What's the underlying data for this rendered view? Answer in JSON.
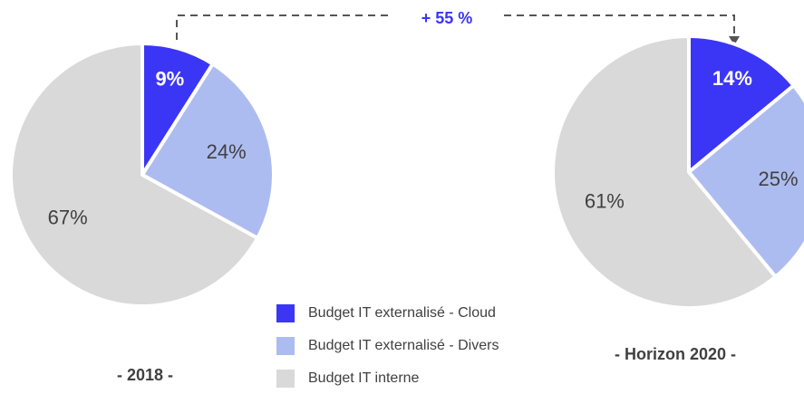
{
  "chart_data": [
    {
      "type": "pie",
      "title": "- 2018 -",
      "values": [
        9,
        24,
        67
      ],
      "value_labels": [
        "9%",
        "24%",
        "67%"
      ]
    },
    {
      "type": "pie",
      "title": "- Horizon 2020 -",
      "values": [
        14,
        25,
        61
      ],
      "value_labels": [
        "14%",
        "25%",
        "61%"
      ]
    }
  ],
  "legend": {
    "categories": [
      "Budget IT externalisé - Cloud",
      "Budget IT externalisé - Divers",
      "Budget IT interne"
    ],
    "colors": [
      "#3b36f5",
      "#adbcf0",
      "#d9d9d9"
    ]
  },
  "annotation": "+ 55 %"
}
